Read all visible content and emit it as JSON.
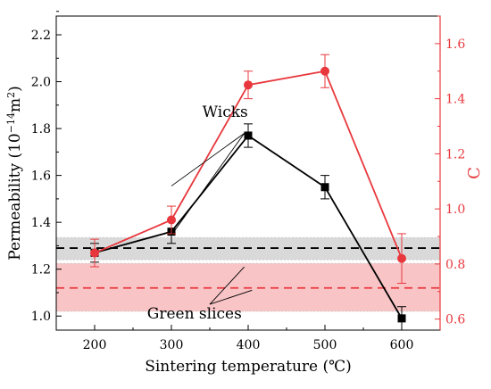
{
  "chart_data": {
    "type": "line",
    "xlabel": "Sintering temperature (℃)",
    "ylabel_left": "Permeability (10",
    "ylabel_left_sup": "−14",
    "ylabel_left_tail": "m",
    "ylabel_left_sup2": "2",
    "ylabel_left_close": ")",
    "ylabel_right": "C",
    "x": [
      200,
      300,
      400,
      500,
      600
    ],
    "xlim": [
      150,
      650
    ],
    "xticks": [
      200,
      300,
      400,
      500,
      600
    ],
    "ylim_left": [
      0.94,
      2.28
    ],
    "yticks_left": [
      1.0,
      1.2,
      1.4,
      1.6,
      1.8,
      2.0,
      2.2
    ],
    "ylim_right": [
      0.56,
      1.7
    ],
    "yticks_right": [
      0.6,
      0.8,
      1.0,
      1.2,
      1.4,
      1.6
    ],
    "series": [
      {
        "axis": "left",
        "color": "#000000",
        "marker": "square",
        "values": [
          1.27,
          1.36,
          1.77,
          1.55,
          0.99
        ],
        "errors": [
          0.04,
          0.05,
          0.05,
          0.05,
          0.05
        ]
      },
      {
        "axis": "right",
        "color": "#e8383d",
        "marker": "circle",
        "values": [
          0.84,
          0.96,
          1.45,
          1.5,
          0.82
        ],
        "errors": [
          0.05,
          0.05,
          0.05,
          0.06,
          0.09
        ]
      }
    ],
    "bands": [
      {
        "axis": "left",
        "center": 1.29,
        "low": 1.24,
        "high": 1.335,
        "fill": "#d9d9d9",
        "line": "#000000"
      },
      {
        "axis": "left",
        "center": 1.12,
        "low": 1.02,
        "high": 1.225,
        "fill": "#f9c4c6",
        "line": "#e8383d"
      }
    ],
    "annotations": [
      {
        "text": "Wicks",
        "x": 370,
        "y": 1.85,
        "axis": "left",
        "targets": [
          [
            300,
            1.345,
            "left"
          ],
          [
            300,
            1.555,
            "left"
          ]
        ],
        "anchor": [
          395,
          1.78,
          "left"
        ]
      },
      {
        "text": "Green slices",
        "x": 330,
        "y": 0.99,
        "axis": "left",
        "targets": [
          [
            395,
            1.21,
            "left"
          ],
          [
            405,
            1.11,
            "left"
          ]
        ],
        "anchor": [
          350,
          1.05,
          "left"
        ]
      }
    ]
  }
}
